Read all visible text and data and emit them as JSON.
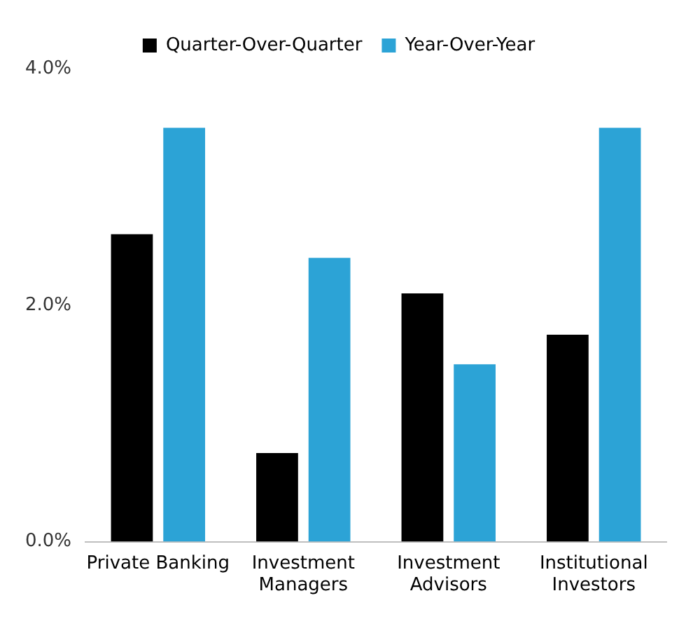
{
  "chart_data": {
    "type": "bar",
    "categories": [
      "Private Banking",
      "Investment Managers",
      "Investment Advisors",
      "Institutional Investors"
    ],
    "series": [
      {
        "name": "Quarter-Over-Quarter",
        "color": "#000000",
        "values": [
          2.6,
          0.75,
          2.1,
          1.75
        ]
      },
      {
        "name": "Year-Over-Year",
        "color": "#2ca3d6",
        "values": [
          3.5,
          2.4,
          1.5,
          3.5
        ]
      }
    ],
    "ylim": [
      0,
      4
    ],
    "yticks": [
      {
        "value": 0,
        "label": "0.0%"
      },
      {
        "value": 2,
        "label": "2.0%"
      },
      {
        "value": 4,
        "label": "4.0%"
      }
    ],
    "grid": false,
    "legend": "top"
  }
}
